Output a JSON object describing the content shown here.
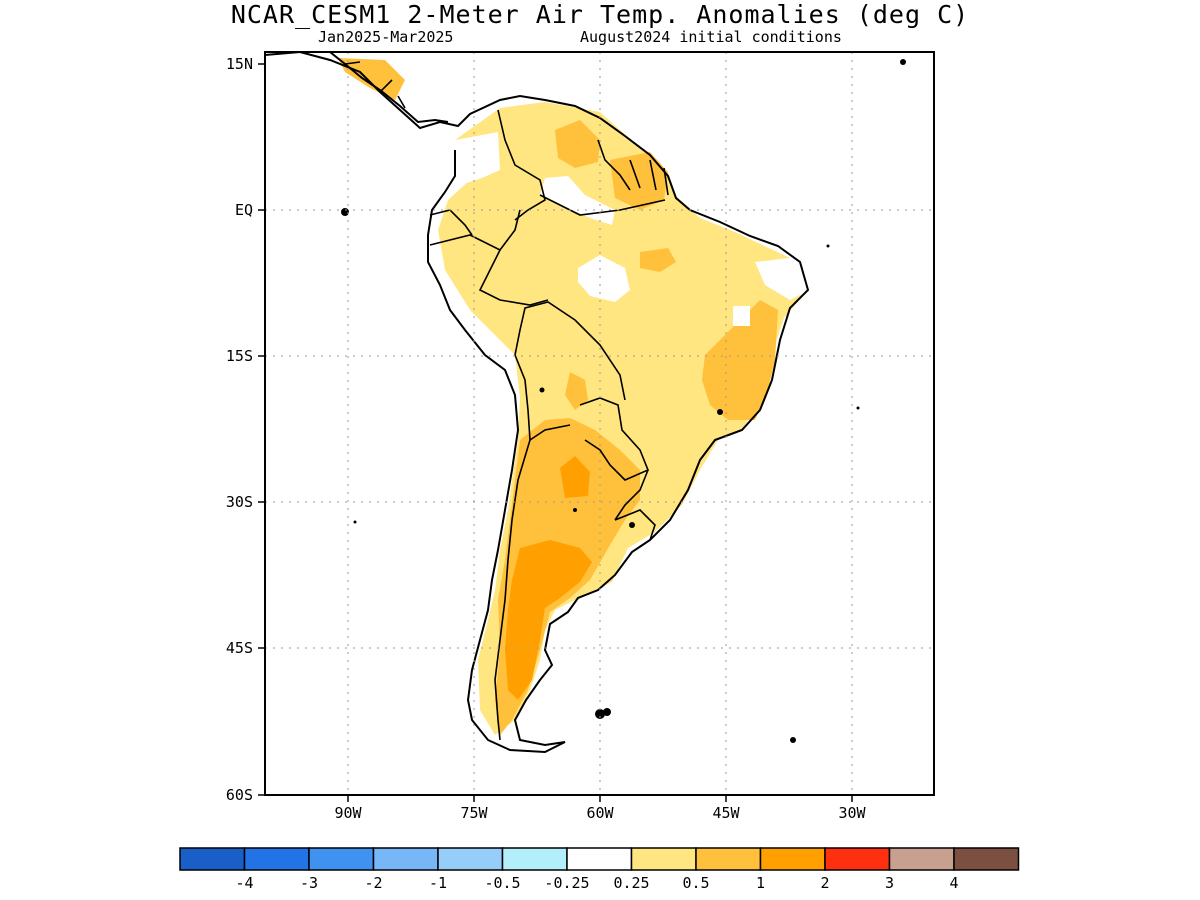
{
  "title": "NCAR_CESM1 2-Meter Air Temp. Anomalies (deg C)",
  "subtitle_left": "Jan2025-Mar2025",
  "subtitle_right": "August2024 initial conditions",
  "lat_labels": [
    "15N",
    "EQ",
    "15S",
    "30S",
    "45S",
    "60S"
  ],
  "lon_labels": [
    "90W",
    "75W",
    "60W",
    "45W",
    "30W"
  ],
  "colorbar": {
    "colors": [
      "#1a5fc8",
      "#2173e6",
      "#3f92ef",
      "#78b7f7",
      "#97cdf9",
      "#b3effa",
      "#ffffff",
      "#ffe680",
      "#ffc03c",
      "#ffa000",
      "#ff3010",
      "#c8a090",
      "#7b5040"
    ],
    "labels": [
      "-4",
      "-3",
      "-2",
      "-1",
      "-0.5",
      "-0.25",
      "0.25",
      "0.5",
      "1",
      "2",
      "3",
      "4"
    ]
  },
  "anomaly_colors": {
    "light_yellow": "#ffe680",
    "light_orange": "#ffc03c",
    "orange": "#ffa000",
    "white": "#ffffff"
  }
}
